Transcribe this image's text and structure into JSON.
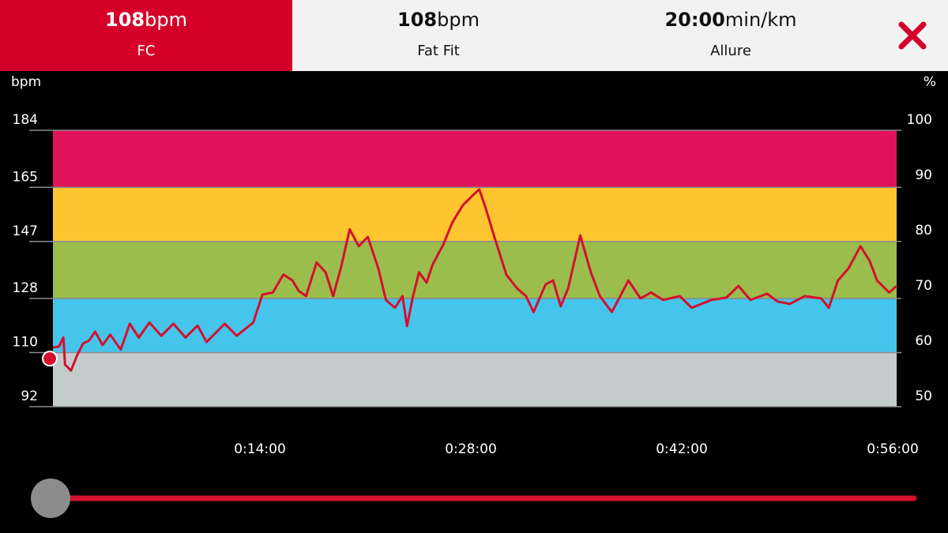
{
  "tabs": [
    {
      "value": "108",
      "unit": "bpm",
      "label": "FC"
    },
    {
      "value": "108",
      "unit": "bpm",
      "label": "Fat Fit"
    },
    {
      "value": "20:00",
      "unit": "min/km",
      "label": "Allure"
    }
  ],
  "chart_data": {
    "type": "line",
    "ylabel": "bpm",
    "y2label": "%",
    "xlim": [
      0,
      56
    ],
    "xticks": [
      {
        "value": 14,
        "label": "0:14:00"
      },
      {
        "value": 28,
        "label": "0:28:00"
      },
      {
        "value": 42,
        "label": "0:42:00"
      },
      {
        "value": 56,
        "label": "0:56:00"
      }
    ],
    "ylim": [
      92,
      184
    ],
    "yticks": [
      92,
      110,
      128,
      147,
      165,
      184
    ],
    "y2lim": [
      50,
      100
    ],
    "y2ticks": [
      50,
      60,
      70,
      80,
      90,
      100
    ],
    "zones": [
      {
        "from": 92,
        "to": 110,
        "color": "#c3cbcb"
      },
      {
        "from": 110,
        "to": 128,
        "color": "#45c5ec"
      },
      {
        "from": 128,
        "to": 147,
        "color": "#9bbd4c"
      },
      {
        "from": 147,
        "to": 165,
        "color": "#fec530"
      },
      {
        "from": 165,
        "to": 184,
        "color": "#e0135b"
      }
    ],
    "color": "#d4102e",
    "x": [
      0,
      0.4,
      0.7,
      0.8,
      1.2,
      1.6,
      2,
      2.4,
      2.8,
      3.3,
      3.8,
      4.5,
      5.1,
      5.7,
      6.4,
      7.2,
      8,
      8.8,
      9.6,
      10.2,
      11.4,
      12.2,
      13.3,
      13.9,
      14.6,
      15.3,
      15.9,
      16.3,
      16.8,
      17.5,
      18.1,
      18.6,
      19.1,
      19.7,
      20.3,
      20.9,
      21.6,
      22.1,
      22.7,
      23.2,
      23.5,
      23.9,
      24.3,
      24.8,
      25.2,
      25.9,
      26.5,
      27.2,
      28,
      28.3,
      28.7,
      29.3,
      30.1,
      30.8,
      31.4,
      31.9,
      32.7,
      33.2,
      33.7,
      34.2,
      35,
      35.7,
      36.3,
      37.1,
      38.2,
      39,
      39.7,
      40.5,
      41.6,
      42.4,
      43.7,
      44.7,
      45.5,
      46.3,
      47.4,
      48.1,
      48.9,
      49.9,
      51,
      51.5,
      52.1,
      52.8,
      53.6,
      54.2,
      54.7,
      55.5,
      56
    ],
    "values": [
      111.7,
      112,
      115,
      106,
      104,
      109,
      113,
      114,
      117,
      112.5,
      116,
      111,
      119.6,
      115,
      120,
      115.6,
      119.6,
      115,
      119,
      113.5,
      119.6,
      115.6,
      120,
      129.3,
      130,
      136,
      134,
      130.6,
      128.8,
      140,
      136.7,
      128.8,
      138,
      151,
      145.4,
      148.5,
      138,
      127.5,
      124.9,
      128.8,
      118.8,
      128.8,
      136.7,
      133.3,
      139.3,
      145.9,
      153.2,
      159,
      163,
      164.3,
      158.5,
      148.5,
      135.9,
      131.4,
      128.8,
      123.5,
      132.7,
      134,
      125.4,
      131.4,
      149,
      136.7,
      128.8,
      123.5,
      134,
      128,
      130,
      127.5,
      128.8,
      124.9,
      127.5,
      128.3,
      132.2,
      127.5,
      129.6,
      127,
      126.2,
      128.8,
      128,
      124.9,
      134,
      138,
      145.4,
      140.6,
      134,
      130,
      132.2
    ],
    "cursor": {
      "x": 0,
      "y": 108
    }
  }
}
